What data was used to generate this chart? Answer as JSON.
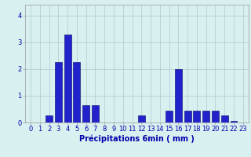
{
  "values": [
    0,
    0,
    0.25,
    2.25,
    3.3,
    2.25,
    0.65,
    0.65,
    0,
    0,
    0,
    0,
    0.25,
    0,
    0,
    0.45,
    2.0,
    0.45,
    0.45,
    0.45,
    0.45,
    0.25,
    0.05,
    0
  ],
  "xlabel": "Précipitations 6min ( mm )",
  "ylim": [
    0,
    4.4
  ],
  "yticks": [
    0,
    1,
    2,
    3,
    4
  ],
  "bar_color": "#2222cc",
  "bar_edge_color": "#000066",
  "background_color": "#d8f0f0",
  "grid_color": "#b0c8c8",
  "text_color": "#0000aa",
  "xlabel_fontsize": 7,
  "tick_fontsize": 6,
  "bar_width": 0.75
}
